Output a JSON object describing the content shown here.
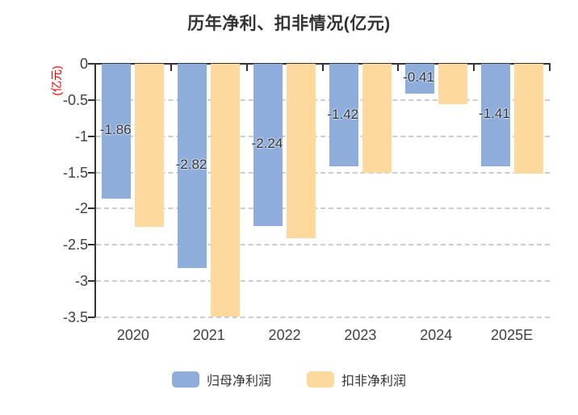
{
  "title": "历年净利、扣非情况(亿元)",
  "y_axis_name": "(亿元)",
  "colors": {
    "series_blue": "#8EADDB",
    "series_orange": "#FDD99E",
    "axis": "#333333",
    "grid": "#CCCCCC",
    "text": "#404040",
    "bar_label": "#333333",
    "y_axis_name_red": "#EC0000",
    "background": "#FFFFFF"
  },
  "chart_data": {
    "type": "bar",
    "categories": [
      "2020",
      "2021",
      "2022",
      "2023",
      "2024",
      "2025E"
    ],
    "series": [
      {
        "name": "归母净利润",
        "color": "#8EADDB",
        "values": [
          -1.86,
          -2.82,
          -2.24,
          -1.42,
          -0.41,
          -1.41
        ],
        "labels": [
          "-1.86",
          "-2.82",
          "-2.24",
          "-1.42",
          "-0.41",
          "-1.41"
        ]
      },
      {
        "name": "扣非净利润",
        "color": "#FDD99E",
        "values": [
          -2.25,
          -3.49,
          -2.41,
          -1.5,
          -0.56,
          -1.51
        ],
        "labels": []
      }
    ],
    "title": "历年净利、扣非情况(亿元)",
    "xlabel": "",
    "ylabel": "(亿元)",
    "ylim": [
      -3.5,
      0
    ],
    "y_tick_labels": [
      "0",
      "-0.5",
      "-1",
      "-1.5",
      "-2",
      "-2.5",
      "-3",
      "-3.5"
    ],
    "grid": "horizontal-dashed",
    "legend_position": "bottom",
    "value_labels_on_series": "归母净利润"
  },
  "legend": {
    "items": [
      {
        "label": "归母净利润",
        "color": "#8EADDB"
      },
      {
        "label": "扣非净利润",
        "color": "#FDD99E"
      }
    ]
  }
}
